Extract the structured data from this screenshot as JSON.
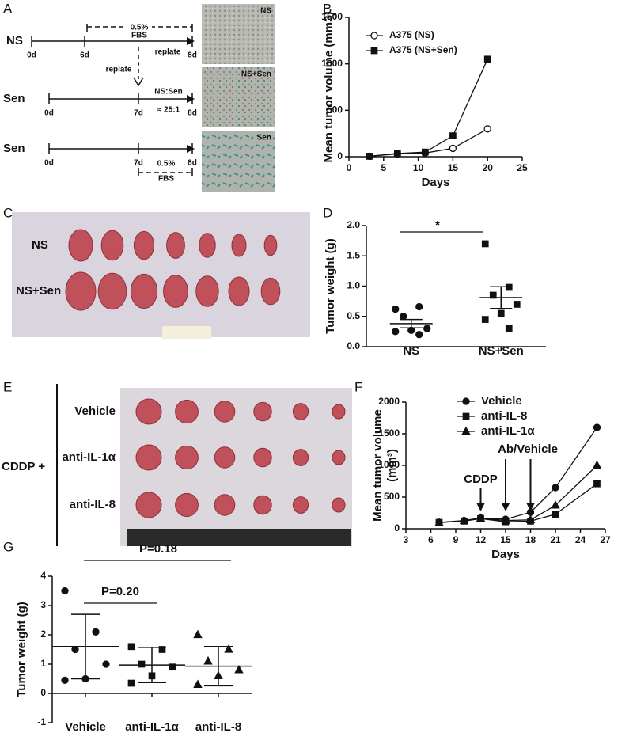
{
  "panels": [
    "A",
    "B",
    "C",
    "D",
    "E",
    "F",
    "G"
  ],
  "diagram": {
    "row_labels": [
      "NS",
      "Sen",
      "Sen"
    ],
    "day_labels": [
      [
        "0d",
        "6d",
        "8d"
      ],
      [
        "0d",
        "7d",
        "8d"
      ],
      [
        "0d",
        "7d",
        "8d"
      ]
    ],
    "fbs_notes": [
      {
        "line1": "0.5%",
        "line2": "FBS"
      },
      {
        "line1": "0.5%",
        "line2": "FBS"
      }
    ],
    "replate": [
      "replate",
      "replate"
    ],
    "ratio": [
      "NS:Sen",
      "≈ 25:1"
    ]
  },
  "micrographs": [
    "NS",
    "NS+Sen",
    "Sen"
  ],
  "photo_c": {
    "rows": [
      "NS",
      "NS+Sen"
    ]
  },
  "photo_e": {
    "prefix": "CDDP +",
    "rows": [
      "Vehicle",
      "anti-IL-1α",
      "anti-IL-8"
    ]
  },
  "chart_data": [
    {
      "type": "line",
      "ylabel": "Mean tumor volume (mm3)",
      "xlabel": "Days",
      "x": [
        3,
        7,
        11,
        15,
        20
      ],
      "series": [
        {
          "name": "A375 (NS)",
          "color": "#111111",
          "marker": "open-circle",
          "values": [
            5,
            30,
            40,
            90,
            300
          ]
        },
        {
          "name": "A375 (NS+Sen)",
          "color": "#111111",
          "marker": "square",
          "values": [
            5,
            35,
            50,
            225,
            1050
          ]
        }
      ],
      "xlim": [
        0,
        25
      ],
      "xticks": [
        0,
        5,
        10,
        15,
        20,
        25
      ],
      "ylim": [
        0,
        1500
      ],
      "yticks": [
        0,
        500,
        1000,
        1500
      ],
      "legend": "upper-left"
    },
    {
      "type": "dot",
      "ylabel": "Tumor weight (g)",
      "annotations": [
        "*"
      ],
      "groups": [
        {
          "name": "NS",
          "marker": "circle",
          "values": [
            0.62,
            0.66,
            0.5,
            0.3,
            0.27,
            0.25,
            0.2
          ],
          "mean": 0.38,
          "error": 0.07
        },
        {
          "name": "NS+Sen",
          "marker": "square",
          "values": [
            1.7,
            0.98,
            0.85,
            0.7,
            0.55,
            0.45,
            0.3
          ],
          "mean": 0.81,
          "error": 0.18
        }
      ],
      "ylim": [
        0,
        2
      ],
      "yticks": [
        {
          "value": 0,
          "label": "0.0"
        },
        {
          "value": 0.5,
          "label": "0.5"
        },
        {
          "value": 1,
          "label": "1.0"
        },
        {
          "value": 1.5,
          "label": "1.5"
        },
        {
          "value": 2,
          "label": "2.0"
        }
      ]
    },
    {
      "type": "line",
      "ylabel": [
        "Mean tumor volume",
        "(mm³)"
      ],
      "xlabel": "Days",
      "annotations": [
        "CDDP",
        "Ab/Vehicle"
      ],
      "x": [
        7,
        10,
        12,
        15,
        18,
        21,
        26
      ],
      "series": [
        {
          "name": "Vehicle",
          "color": "#111111",
          "marker": "circle",
          "values": [
            100,
            130,
            170,
            150,
            260,
            650,
            1600
          ]
        },
        {
          "name": "anti-IL-8",
          "color": "#111111",
          "marker": "square",
          "values": [
            100,
            120,
            160,
            110,
            120,
            230,
            710
          ]
        },
        {
          "name": "anti-IL-1α",
          "color": "#111111",
          "marker": "triangle",
          "values": [
            95,
            125,
            165,
            130,
            140,
            370,
            1000
          ]
        }
      ],
      "xlim": [
        3,
        27
      ],
      "xticks": [
        3,
        6,
        9,
        12,
        15,
        18,
        21,
        24,
        27
      ],
      "ylim": [
        0,
        2000
      ],
      "yticks": [
        0,
        500,
        1000,
        1500,
        2000
      ],
      "legend": "upper-left"
    },
    {
      "type": "dot",
      "ylabel": "Tumor weight (g)",
      "annotations": [
        "P=0.18",
        "P=0.20"
      ],
      "groups": [
        {
          "name": "Vehicle",
          "marker": "circle",
          "values": [
            3.5,
            2.1,
            1.5,
            1.0,
            0.5,
            0.45
          ],
          "mean": 1.6,
          "error": 1.1
        },
        {
          "name": "anti-IL-1α",
          "marker": "square",
          "values": [
            1.6,
            1.5,
            1.0,
            0.9,
            0.6,
            0.35
          ],
          "mean": 0.97,
          "error": 0.6
        },
        {
          "name": "anti-IL-8",
          "marker": "triangle",
          "values": [
            2.0,
            1.5,
            1.1,
            0.8,
            0.6,
            0.3
          ],
          "mean": 0.93,
          "error": 0.67
        }
      ],
      "ylim": [
        -1,
        4
      ],
      "yticks": [
        -1,
        0,
        1,
        2,
        3,
        4
      ]
    }
  ]
}
